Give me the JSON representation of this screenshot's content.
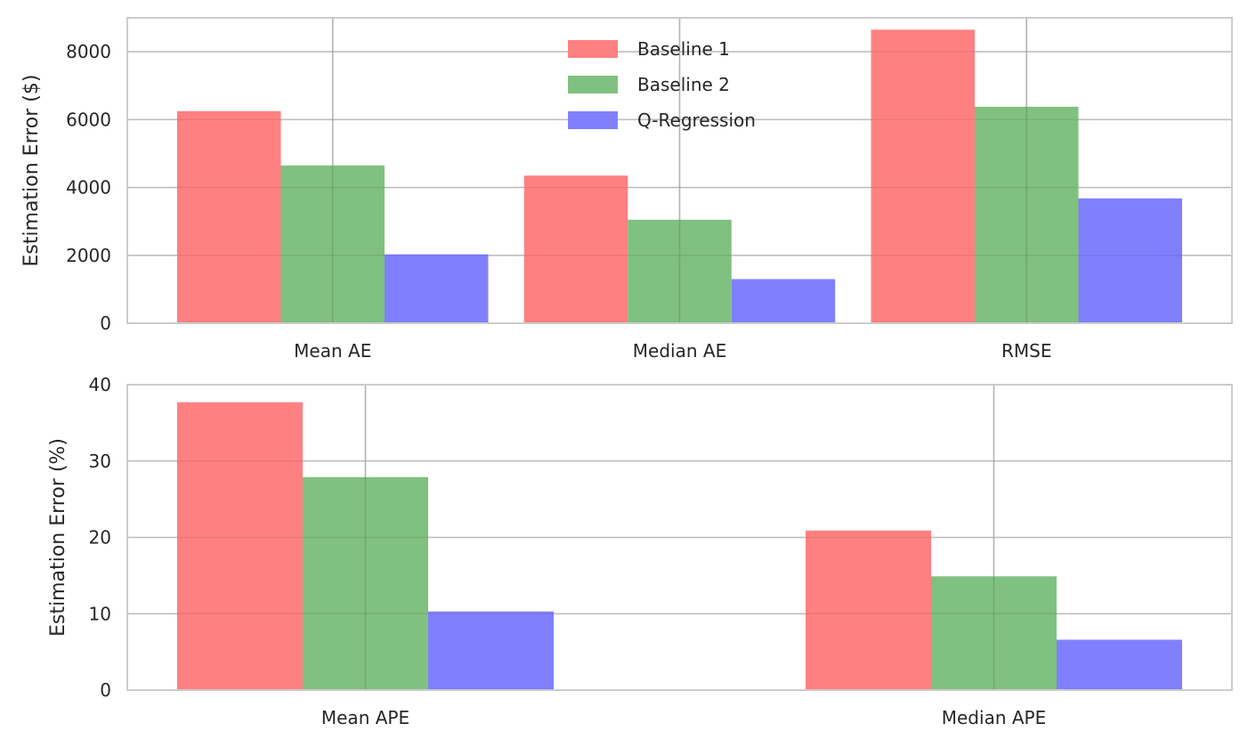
{
  "chart_data": [
    {
      "type": "bar",
      "title": "",
      "xlabel": "",
      "ylabel": "Estimation Error ($)",
      "categories": [
        "Mean AE",
        "Median AE",
        "RMSE"
      ],
      "ylim": [
        0,
        9000
      ],
      "yticks": [
        0,
        2000,
        4000,
        6000,
        8000
      ],
      "grid": true,
      "legend_position": "top-center",
      "series": [
        {
          "name": "Baseline 1",
          "color": "#ff8080",
          "values": [
            6250,
            4350,
            8650
          ]
        },
        {
          "name": "Baseline 2",
          "color": "#80c080",
          "values": [
            4650,
            3050,
            6380
          ]
        },
        {
          "name": "Q-Regression",
          "color": "#8080ff",
          "values": [
            2030,
            1300,
            3680
          ]
        }
      ]
    },
    {
      "type": "bar",
      "title": "",
      "xlabel": "",
      "ylabel": "Estimation Error (%)",
      "categories": [
        "Mean APE",
        "Median APE"
      ],
      "ylim": [
        0,
        40
      ],
      "yticks": [
        0,
        10,
        20,
        30,
        40
      ],
      "grid": true,
      "series": [
        {
          "name": "Baseline 1",
          "color": "#ff8080",
          "values": [
            37.7,
            20.9
          ]
        },
        {
          "name": "Baseline 2",
          "color": "#80c080",
          "values": [
            27.9,
            14.9
          ]
        },
        {
          "name": "Q-Regression",
          "color": "#8080ff",
          "values": [
            10.3,
            6.6
          ]
        }
      ]
    }
  ]
}
